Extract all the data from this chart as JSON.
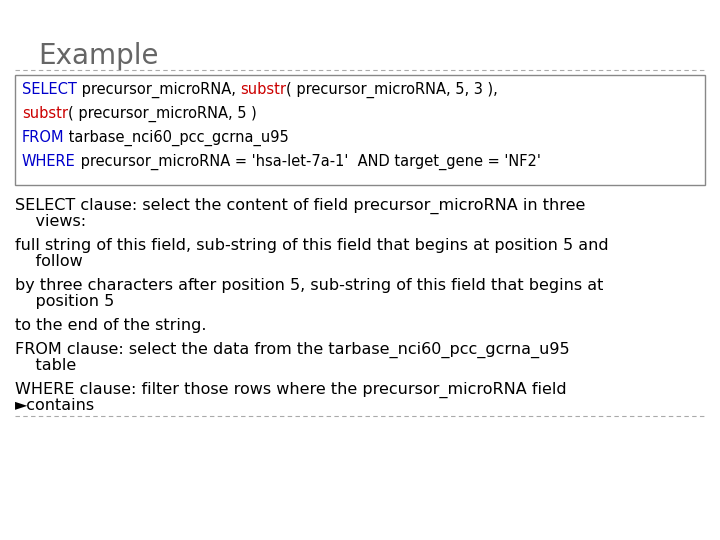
{
  "title": "Example",
  "title_color": "#666666",
  "title_fontsize": 20,
  "bg_color": "#ffffff",
  "code_lines": [
    [
      {
        "text": "SELECT",
        "color": "#0000cc"
      },
      {
        "text": " precursor_microRNA, ",
        "color": "#000000"
      },
      {
        "text": "substr",
        "color": "#cc0000"
      },
      {
        "text": "( precursor_microRNA, 5, 3 ),",
        "color": "#000000"
      }
    ],
    [
      {
        "text": "substr",
        "color": "#cc0000"
      },
      {
        "text": "( precursor_microRNA, 5 )",
        "color": "#000000"
      }
    ],
    [
      {
        "text": "FROM",
        "color": "#0000cc"
      },
      {
        "text": " tarbase_nci60_pcc_gcrna_u95",
        "color": "#000000"
      }
    ],
    [
      {
        "text": "WHERE",
        "color": "#0000cc"
      },
      {
        "text": " precursor_microRNA = 'hsa-let-7a-1'  AND target_gene = 'NF2'",
        "color": "#000000"
      }
    ]
  ],
  "body_blocks": [
    {
      "lines": [
        "SELECT clause: select the content of field precursor_microRNA in three",
        "    views:"
      ]
    },
    {
      "lines": [
        "full string of this field, sub-string of this field that begins at position 5 and",
        "    follow"
      ]
    },
    {
      "lines": [
        "by three characters after position 5, sub-string of this field that begins at",
        "    position 5"
      ]
    },
    {
      "lines": [
        "to the end of the string."
      ]
    },
    {
      "lines": [
        "FROM clause: select the data from the tarbase_nci60_pcc_gcrna_u95",
        "    table"
      ]
    },
    {
      "lines": [
        "WHERE clause: filter those rows where the precursor_microRNA field",
        "►contains"
      ]
    }
  ],
  "code_fontsize": 10.5,
  "body_fontsize": 11.5
}
